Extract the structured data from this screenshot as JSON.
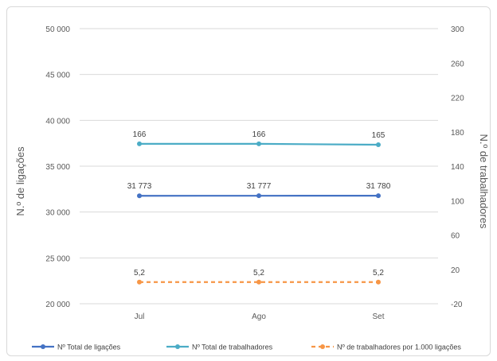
{
  "chart_data": {
    "type": "line",
    "categories": [
      "Jul",
      "Ago",
      "Set"
    ],
    "y_left": {
      "label": "N.º de ligações",
      "min": 20000,
      "max": 50000,
      "ticks": [
        20000,
        25000,
        30000,
        35000,
        40000,
        45000,
        50000
      ],
      "tick_labels": [
        "20 000",
        "25 000",
        "30 000",
        "35 000",
        "40 000",
        "45 000",
        "50 000"
      ]
    },
    "y_right": {
      "label": "N.º de trabalhadores",
      "min": -20,
      "max": 300,
      "ticks": [
        -20,
        20,
        60,
        100,
        140,
        180,
        220,
        260,
        300
      ],
      "tick_labels": [
        "-20",
        "20",
        "60",
        "100",
        "140",
        "180",
        "220",
        "260",
        "300"
      ]
    },
    "series": [
      {
        "name": "Nº Total de ligações",
        "axis": "left",
        "values": [
          31773,
          31777,
          31780
        ],
        "value_labels": [
          "31 773",
          "31 777",
          "31 780"
        ],
        "color": "#4472c4",
        "dashed": false
      },
      {
        "name": "Nº Total de trabalhadores",
        "axis": "right",
        "values": [
          166,
          166,
          165
        ],
        "value_labels": [
          "166",
          "166",
          "165"
        ],
        "color": "#4bacc6",
        "dashed": false
      },
      {
        "name": "Nº de trabalhadores por 1.000 ligações",
        "axis": "right",
        "values": [
          5.2,
          5.2,
          5.2
        ],
        "value_labels": [
          "5,2",
          "5,2",
          "5,2"
        ],
        "color": "#f79646",
        "dashed": true
      }
    ],
    "grid": true,
    "legend_position": "bottom"
  }
}
